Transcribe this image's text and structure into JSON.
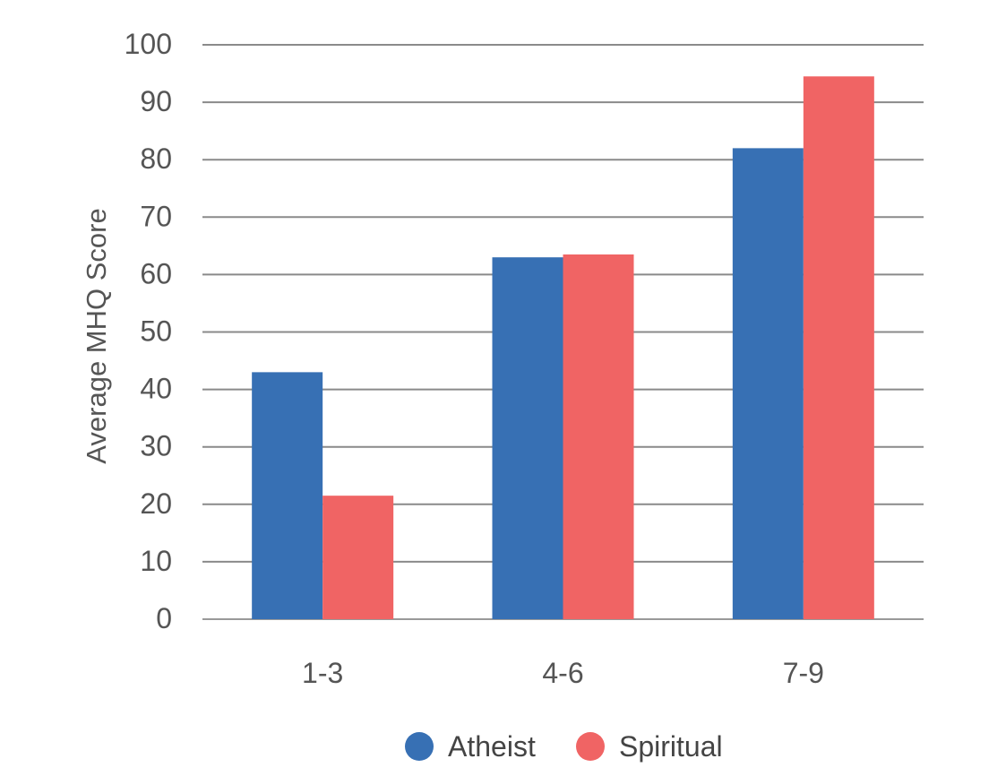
{
  "chart_data": {
    "type": "bar",
    "title": "",
    "xlabel": "",
    "ylabel": "Average MHQ Score",
    "categories": [
      "1-3",
      "4-6",
      "7-9"
    ],
    "series": [
      {
        "name": "Atheist",
        "values": [
          43,
          63,
          82
        ],
        "color": "#3770b4"
      },
      {
        "name": "Spiritual",
        "values": [
          21.5,
          63.5,
          94.5
        ],
        "color": "#f06464"
      }
    ],
    "ylim": [
      0,
      100
    ],
    "yticks": [
      0,
      10,
      20,
      30,
      40,
      50,
      60,
      70,
      80,
      90,
      100
    ],
    "grid": true,
    "legend_position": "bottom-center"
  }
}
